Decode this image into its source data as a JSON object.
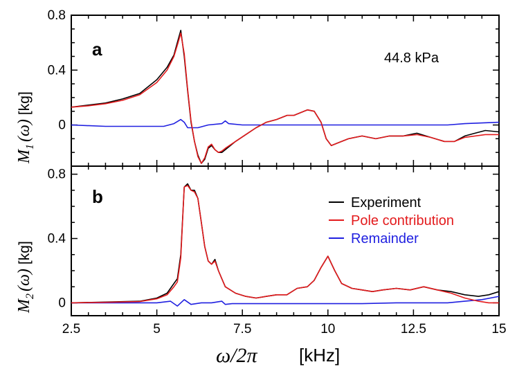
{
  "chart_data": [
    {
      "type": "line",
      "panel_label": "a",
      "annotation": "44.8 kPa",
      "ylabel_symbol": "M",
      "ylabel_sub": "1",
      "ylabel_rest": "(ω)",
      "ylabel_unit": "[kg]",
      "xlim": [
        2.5,
        15
      ],
      "ylim": [
        -0.3,
        0.8
      ],
      "yticks": [
        0,
        0.4,
        0.8
      ],
      "ytick_labels": [
        "0",
        "0.4",
        "0.8"
      ],
      "series": [
        {
          "name": "Experiment",
          "color": "#000000",
          "x": [
            2.5,
            3,
            3.5,
            4,
            4.5,
            5,
            5.3,
            5.5,
            5.62,
            5.7,
            5.8,
            5.9,
            6.0,
            6.1,
            6.2,
            6.3,
            6.4,
            6.5,
            6.6,
            6.7,
            6.8,
            6.9,
            7.0,
            7.3,
            7.6,
            7.9,
            8.2,
            8.5,
            8.8,
            9.0,
            9.2,
            9.4,
            9.6,
            9.8,
            9.95,
            10.1,
            10.3,
            10.6,
            11.0,
            11.4,
            11.8,
            12.2,
            12.6,
            13.0,
            13.4,
            13.7,
            14.0,
            14.3,
            14.6,
            15
          ],
          "y": [
            0.13,
            0.145,
            0.16,
            0.19,
            0.23,
            0.33,
            0.42,
            0.51,
            0.62,
            0.69,
            0.5,
            0.25,
            0.02,
            -0.12,
            -0.22,
            -0.28,
            -0.25,
            -0.17,
            -0.15,
            -0.18,
            -0.2,
            -0.2,
            -0.18,
            -0.12,
            -0.07,
            -0.02,
            0.02,
            0.04,
            0.07,
            0.07,
            0.09,
            0.11,
            0.1,
            0.02,
            -0.1,
            -0.15,
            -0.13,
            -0.1,
            -0.08,
            -0.1,
            -0.08,
            -0.08,
            -0.06,
            -0.09,
            -0.12,
            -0.12,
            -0.08,
            -0.06,
            -0.04,
            -0.05
          ]
        },
        {
          "name": "Pole contribution",
          "color": "#e31a1c",
          "x": [
            2.5,
            3,
            3.5,
            4,
            4.5,
            5,
            5.3,
            5.5,
            5.62,
            5.7,
            5.8,
            5.9,
            6.0,
            6.1,
            6.2,
            6.3,
            6.4,
            6.5,
            6.6,
            6.7,
            6.8,
            6.9,
            7.0,
            7.3,
            7.6,
            7.9,
            8.2,
            8.5,
            8.8,
            9.0,
            9.2,
            9.4,
            9.6,
            9.8,
            9.95,
            10.1,
            10.3,
            10.6,
            11.0,
            11.4,
            11.8,
            12.2,
            12.6,
            13.0,
            13.4,
            13.7,
            14.0,
            14.3,
            14.6,
            15
          ],
          "y": [
            0.13,
            0.14,
            0.155,
            0.18,
            0.22,
            0.31,
            0.4,
            0.5,
            0.6,
            0.67,
            0.52,
            0.26,
            0.03,
            -0.12,
            -0.23,
            -0.28,
            -0.24,
            -0.16,
            -0.14,
            -0.18,
            -0.2,
            -0.19,
            -0.17,
            -0.12,
            -0.07,
            -0.02,
            0.02,
            0.04,
            0.07,
            0.07,
            0.09,
            0.11,
            0.1,
            0.02,
            -0.1,
            -0.15,
            -0.13,
            -0.1,
            -0.08,
            -0.1,
            -0.08,
            -0.08,
            -0.07,
            -0.09,
            -0.12,
            -0.12,
            -0.09,
            -0.08,
            -0.07,
            -0.07
          ]
        },
        {
          "name": "Remainder",
          "color": "#1f1fe0",
          "x": [
            2.5,
            3.5,
            4.5,
            5.2,
            5.5,
            5.7,
            5.8,
            5.9,
            6.2,
            6.5,
            6.9,
            7.0,
            7.1,
            7.5,
            8.5,
            9.5,
            10.5,
            11.5,
            12.5,
            13.5,
            14.0,
            14.5,
            15
          ],
          "y": [
            0,
            -0.01,
            -0.01,
            -0.01,
            0.01,
            0.04,
            0.02,
            -0.02,
            -0.02,
            0.0,
            0.01,
            0.03,
            0.01,
            0.0,
            0.0,
            0.0,
            0.0,
            0.0,
            0.0,
            0.0,
            0.01,
            0.015,
            0.02
          ]
        }
      ]
    },
    {
      "type": "line",
      "panel_label": "b",
      "ylabel_symbol": "M",
      "ylabel_sub": "2",
      "ylabel_rest": "(ω)",
      "ylabel_unit": "[kg]",
      "xlim": [
        2.5,
        15
      ],
      "ylim": [
        -0.08,
        0.85
      ],
      "yticks": [
        0,
        0.4,
        0.8
      ],
      "ytick_labels": [
        "0",
        "0.4",
        "0.8"
      ],
      "xticks": [
        2.5,
        5,
        7.5,
        10,
        12.5,
        15
      ],
      "xtick_labels": [
        "2.5",
        "5",
        "7.5",
        "10",
        "12.5",
        "15"
      ],
      "series": [
        {
          "name": "Experiment",
          "color": "#000000",
          "x": [
            2.5,
            3.5,
            4.5,
            5.0,
            5.3,
            5.5,
            5.6,
            5.7,
            5.8,
            5.9,
            6.0,
            6.1,
            6.2,
            6.3,
            6.4,
            6.5,
            6.6,
            6.7,
            6.8,
            6.9,
            7.0,
            7.3,
            7.6,
            7.9,
            8.2,
            8.5,
            8.8,
            9.1,
            9.4,
            9.6,
            9.8,
            10.0,
            10.2,
            10.4,
            10.7,
            11.0,
            11.3,
            11.6,
            12.0,
            12.4,
            12.8,
            13.2,
            13.6,
            14.0,
            14.4,
            14.7,
            15
          ],
          "y": [
            0,
            0.005,
            0.01,
            0.03,
            0.06,
            0.12,
            0.15,
            0.3,
            0.72,
            0.74,
            0.7,
            0.7,
            0.65,
            0.5,
            0.35,
            0.26,
            0.24,
            0.27,
            0.2,
            0.15,
            0.1,
            0.06,
            0.04,
            0.03,
            0.04,
            0.05,
            0.05,
            0.09,
            0.1,
            0.14,
            0.22,
            0.29,
            0.2,
            0.12,
            0.09,
            0.08,
            0.07,
            0.08,
            0.09,
            0.08,
            0.1,
            0.08,
            0.07,
            0.05,
            0.04,
            0.05,
            0.07
          ]
        },
        {
          "name": "Pole contribution",
          "color": "#e31a1c",
          "x": [
            2.5,
            3.5,
            4.5,
            5.0,
            5.3,
            5.5,
            5.6,
            5.7,
            5.8,
            5.9,
            6.0,
            6.1,
            6.2,
            6.3,
            6.4,
            6.5,
            6.6,
            6.7,
            6.8,
            6.9,
            7.0,
            7.3,
            7.6,
            7.9,
            8.2,
            8.5,
            8.8,
            9.1,
            9.4,
            9.6,
            9.8,
            10.0,
            10.2,
            10.4,
            10.7,
            11.0,
            11.3,
            11.6,
            12.0,
            12.4,
            12.8,
            13.2,
            13.6,
            14.0,
            14.4,
            14.7,
            15
          ],
          "y": [
            0,
            0.003,
            0.008,
            0.025,
            0.05,
            0.1,
            0.13,
            0.28,
            0.72,
            0.73,
            0.7,
            0.69,
            0.65,
            0.5,
            0.35,
            0.26,
            0.24,
            0.26,
            0.2,
            0.15,
            0.1,
            0.06,
            0.04,
            0.03,
            0.04,
            0.05,
            0.05,
            0.09,
            0.1,
            0.14,
            0.22,
            0.29,
            0.2,
            0.12,
            0.09,
            0.08,
            0.07,
            0.08,
            0.09,
            0.08,
            0.1,
            0.08,
            0.06,
            0.03,
            0.01,
            0.0,
            0.0
          ]
        },
        {
          "name": "Remainder",
          "color": "#1f1fe0",
          "x": [
            2.5,
            3.5,
            4.5,
            5.0,
            5.4,
            5.6,
            5.8,
            6.0,
            6.3,
            6.6,
            6.9,
            7.0,
            7.2,
            8.0,
            9.0,
            10.0,
            11.0,
            12.0,
            13.0,
            13.5,
            14.0,
            14.5,
            15
          ],
          "y": [
            0,
            0,
            0,
            0.0,
            0.01,
            -0.02,
            0.02,
            -0.01,
            0.0,
            0.0,
            0.01,
            -0.01,
            -0.005,
            -0.005,
            -0.005,
            -0.005,
            -0.005,
            0.0,
            0.0,
            0.0,
            0.01,
            0.02,
            0.04
          ]
        }
      ]
    }
  ],
  "x_axis": {
    "symbol": "ω/2π",
    "unit": "[kHz]"
  },
  "legend": [
    "Experiment",
    "Pole contribution",
    "Remainder"
  ]
}
